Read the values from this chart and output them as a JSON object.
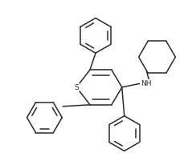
{
  "bg_color": "#ffffff",
  "line_color": "#2a2a2a",
  "line_width": 1.1,
  "fig_width": 2.29,
  "fig_height": 2.07,
  "dpi": 100,
  "S_label": "S",
  "NH_label": "NH",
  "font_size_atom": 6.5
}
